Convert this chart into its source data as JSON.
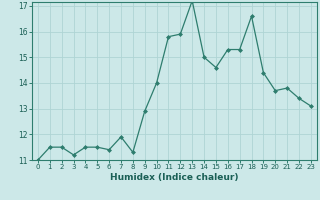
{
  "x": [
    0,
    1,
    2,
    3,
    4,
    5,
    6,
    7,
    8,
    9,
    10,
    11,
    12,
    13,
    14,
    15,
    16,
    17,
    18,
    19,
    20,
    21,
    22,
    23
  ],
  "y": [
    11.0,
    11.5,
    11.5,
    11.2,
    11.5,
    11.5,
    11.4,
    11.9,
    11.3,
    12.9,
    14.0,
    15.8,
    15.9,
    17.2,
    15.0,
    14.6,
    15.3,
    15.3,
    16.6,
    14.4,
    13.7,
    13.8,
    13.4,
    13.1
  ],
  "xlabel": "Humidex (Indice chaleur)",
  "ylim": [
    11,
    17
  ],
  "xlim": [
    -0.5,
    23.5
  ],
  "yticks": [
    11,
    12,
    13,
    14,
    15,
    16,
    17
  ],
  "xticks": [
    0,
    1,
    2,
    3,
    4,
    5,
    6,
    7,
    8,
    9,
    10,
    11,
    12,
    13,
    14,
    15,
    16,
    17,
    18,
    19,
    20,
    21,
    22,
    23
  ],
  "line_color": "#2e7d6e",
  "marker_color": "#2e7d6e",
  "bg_color": "#cce8e8",
  "grid_color": "#afd4d4",
  "xlabel_color": "#1a5f55",
  "tick_color": "#1a5f55",
  "spine_color": "#2e7d6e"
}
